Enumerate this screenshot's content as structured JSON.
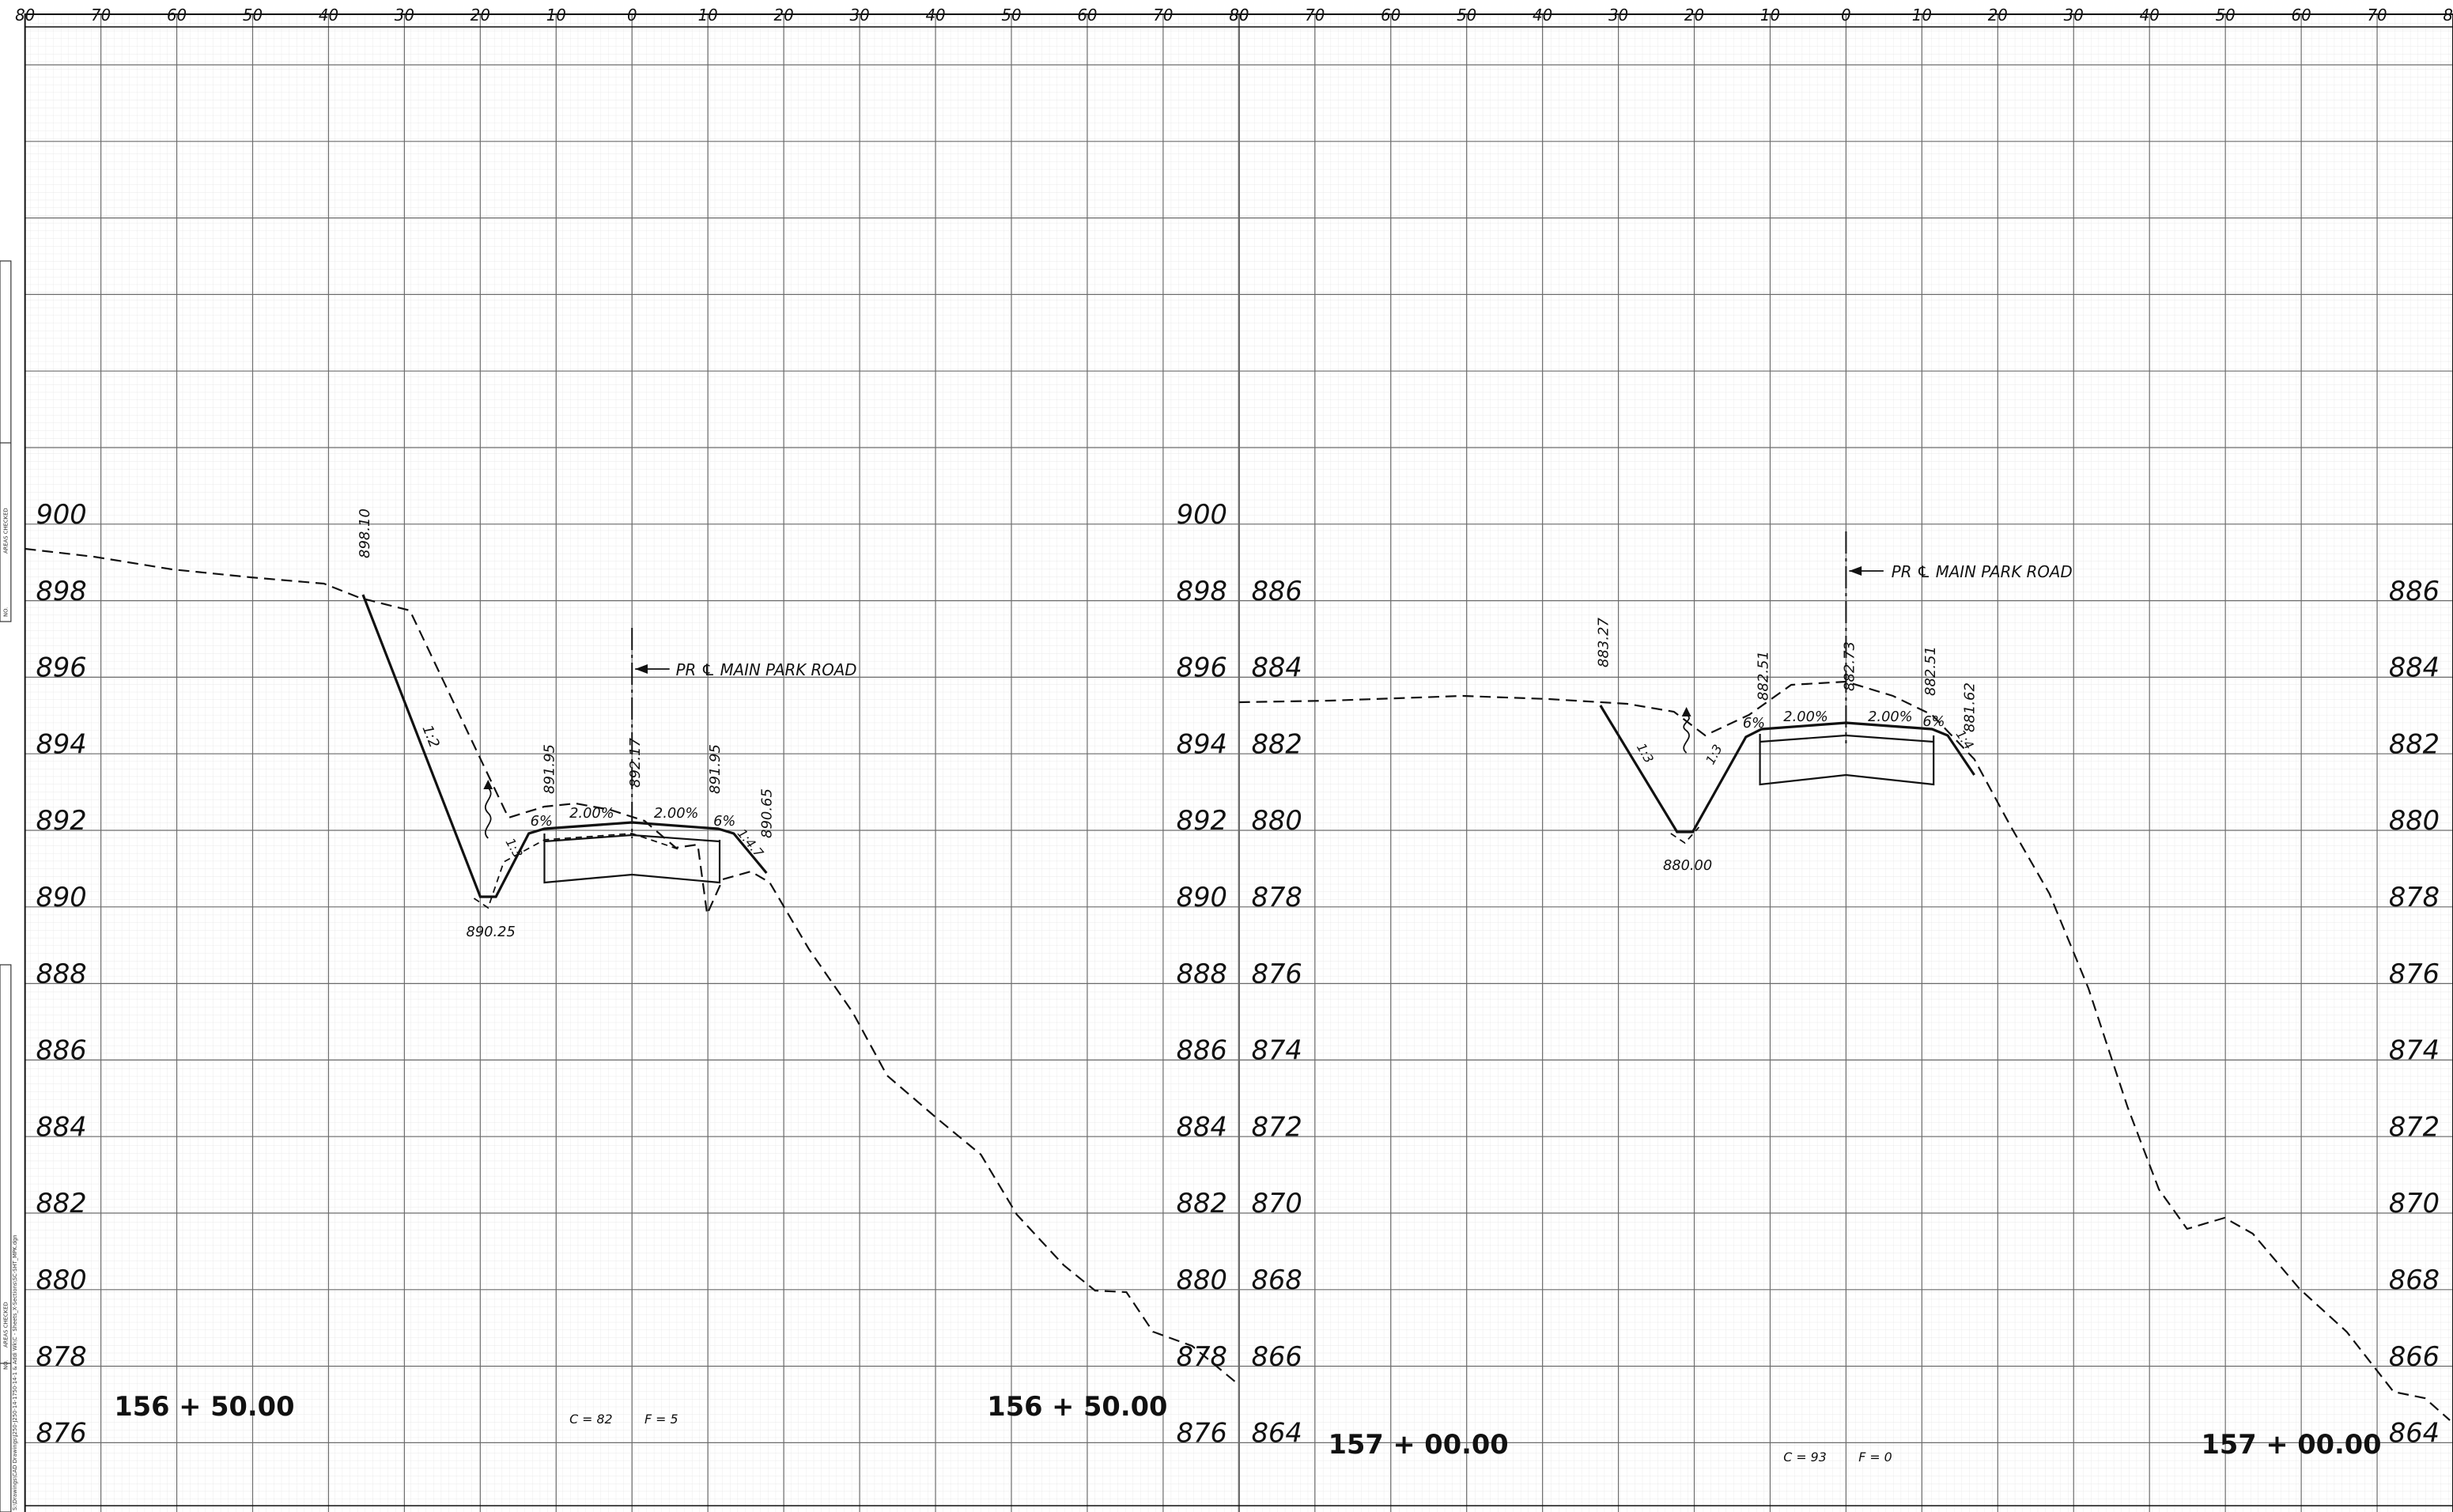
{
  "sheet": {
    "colors": {
      "grid": "#e3e3e3",
      "grid_major": "#6c6c6c",
      "line": "#111111",
      "text": "#111111"
    }
  },
  "margin_notes": {
    "upper": "AREAS CHECKED",
    "upper_no": "NO.",
    "lower": "AREAS CHECKED",
    "lower_no": "NO.",
    "path": "S:\\Drawings\\CAD Drawings\\J250-J250-14-1750-14-1 & Addi Wk\\C - Sheets_X-Sections\\SC-SHT_MPK.dgn"
  },
  "panels": [
    {
      "offset_ticks": [
        "80",
        "70",
        "60",
        "50",
        "40",
        "30",
        "20",
        "10",
        "0",
        "10",
        "20",
        "30",
        "40",
        "50",
        "60",
        "70",
        "80"
      ],
      "elev_left": [
        "900",
        "898",
        "896",
        "894",
        "892",
        "890",
        "888",
        "886",
        "884",
        "882",
        "880",
        "878",
        "876"
      ],
      "elev_right": [],
      "station_left": "156 + 50.00",
      "station_right": "156 + 50.00",
      "volumes": {
        "cut": "C = 82",
        "fill": "F = 5"
      },
      "centerline_label": "PR ℄ MAIN PARK ROAD",
      "annotations": {
        "elev_top_slope": "898.10",
        "elev_ditch": "890.25",
        "elev_lt_shoulder": "891.95",
        "elev_cl": "892.17",
        "elev_rt_shoulder": "891.95",
        "elev_rt_toe": "890.65",
        "slope_main": "1:2",
        "slope_ditch_back": "1:3",
        "slope_rt": "1:4.7",
        "pct_lt_shoulder": "6%",
        "pct_lt_lane": "2.00%",
        "pct_rt_lane": "2.00%",
        "pct_rt_shoulder": "6%"
      }
    },
    {
      "offset_ticks": [
        "80",
        "70",
        "60",
        "50",
        "40",
        "30",
        "20",
        "10",
        "0",
        "10",
        "20",
        "30",
        "40",
        "50",
        "60",
        "70",
        "80"
      ],
      "elev_left": [
        "900",
        "898",
        "896",
        "894",
        "892",
        "890",
        "888",
        "886",
        "884",
        "882",
        "880",
        "878",
        "876"
      ],
      "elev_right": [
        "886",
        "884",
        "882",
        "880",
        "878",
        "876",
        "874",
        "872",
        "870",
        "868",
        "866",
        "864"
      ],
      "station_left": "157 + 00.00",
      "station_right": "157 + 00.00",
      "volumes": {
        "cut": "C = 93",
        "fill": "F = 0"
      },
      "centerline_label": "PR ℄ MAIN PARK ROAD",
      "annotations": {
        "elev_top_slope": "883.27",
        "elev_ditch": "880.00",
        "elev_lt_shoulder": "882.51",
        "elev_cl": "882.73",
        "elev_rt_shoulder": "882.51",
        "elev_rt_toe": "881.62",
        "slope_main": "1:3",
        "slope_ditch_back": "1:3",
        "slope_rt": "1:4",
        "pct_lt_shoulder": "6%",
        "pct_lt_lane": "2.00%",
        "pct_rt_lane": "2.00%",
        "pct_rt_shoulder": "6%"
      }
    }
  ]
}
